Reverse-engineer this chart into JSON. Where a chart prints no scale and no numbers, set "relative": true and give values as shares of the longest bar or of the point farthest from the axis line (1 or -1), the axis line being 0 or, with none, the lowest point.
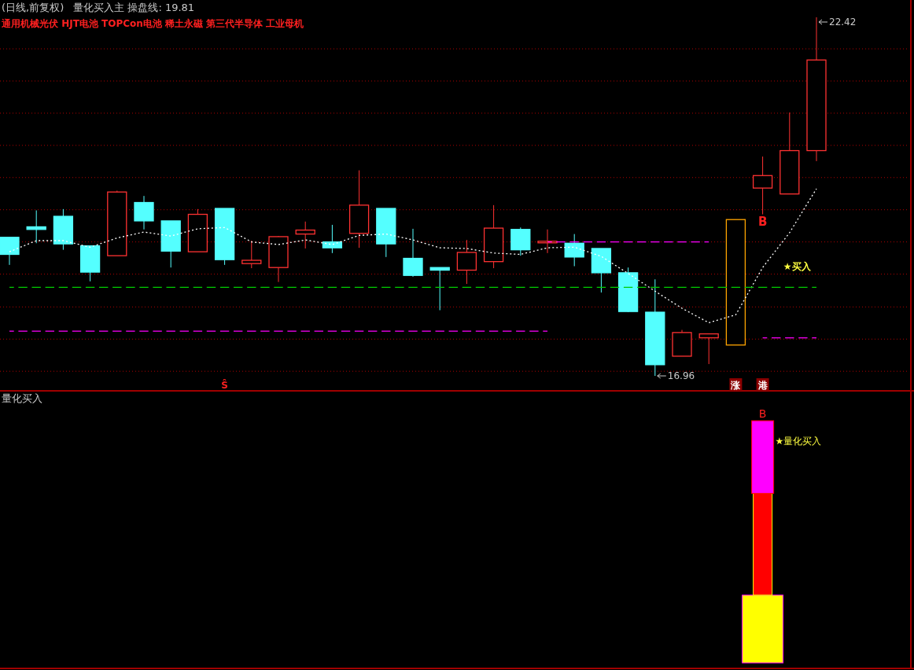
{
  "chart_data": [
    {
      "type": "candlestick",
      "title": "(日线,前复权)",
      "subtitle": "量化买入主 操盘线: 19.81",
      "categories": [
        null,
        null,
        null,
        null,
        null,
        null,
        null,
        null,
        null,
        null,
        null,
        null,
        null,
        null,
        null,
        null,
        null,
        null,
        null,
        null,
        null,
        null,
        null,
        null,
        null,
        null,
        null,
        null,
        null,
        null,
        null
      ],
      "yticks": [
        {
          "value": 21.94,
          "label": null
        },
        {
          "value": 21.45,
          "label": null
        },
        {
          "value": 20.96,
          "label": null
        },
        {
          "value": 20.47,
          "label": null
        },
        {
          "value": 19.98,
          "label": null
        },
        {
          "value": 19.49,
          "label": null
        },
        {
          "value": 19.0,
          "label": null
        },
        {
          "value": 18.51,
          "label": null
        },
        {
          "value": 18.01,
          "label": null
        },
        {
          "value": 17.52,
          "label": null
        },
        {
          "value": 17.03,
          "label": null
        }
      ],
      "ohlc": [
        [
          19.07,
          19.07,
          18.65,
          18.81
        ],
        [
          19.23,
          19.48,
          18.98,
          19.19
        ],
        [
          19.39,
          19.5,
          18.88,
          18.97
        ],
        [
          18.94,
          18.94,
          18.4,
          18.54
        ],
        [
          18.79,
          19.78,
          18.79,
          19.76
        ],
        [
          19.6,
          19.7,
          19.19,
          19.32
        ],
        [
          19.32,
          19.32,
          18.61,
          18.86
        ],
        [
          18.85,
          19.5,
          18.85,
          19.42
        ],
        [
          19.51,
          19.51,
          18.65,
          18.73
        ],
        [
          18.67,
          19.02,
          18.6,
          18.72
        ],
        [
          18.61,
          19.09,
          18.39,
          19.08
        ],
        [
          19.12,
          19.31,
          18.9,
          19.18
        ],
        [
          19.0,
          19.26,
          18.83,
          18.91
        ],
        [
          19.13,
          20.09,
          18.91,
          19.56
        ],
        [
          19.51,
          19.51,
          18.77,
          18.97
        ],
        [
          18.75,
          19.2,
          18.47,
          18.49
        ],
        [
          18.61,
          18.61,
          17.96,
          18.57
        ],
        [
          18.57,
          19.03,
          18.36,
          18.84
        ],
        [
          18.7,
          19.56,
          18.6,
          19.21
        ],
        [
          19.19,
          19.22,
          18.79,
          18.88
        ],
        [
          18.99,
          19.19,
          18.83,
          19.01
        ],
        [
          18.98,
          19.12,
          18.63,
          18.77
        ],
        [
          18.9,
          18.9,
          18.23,
          18.53
        ],
        [
          18.53,
          18.61,
          17.93,
          17.94
        ],
        [
          17.93,
          18.43,
          16.96,
          17.13
        ],
        [
          17.26,
          17.66,
          17.26,
          17.62
        ],
        [
          17.54,
          17.6,
          17.14,
          17.6
        ],
        [
          17.43,
          19.34,
          17.43,
          19.34
        ],
        [
          19.82,
          20.3,
          19.42,
          20.01
        ],
        [
          19.73,
          20.97,
          19.73,
          20.39
        ],
        [
          20.39,
          22.42,
          20.23,
          21.77
        ]
      ],
      "colors": [
        "#54ffff",
        "#54ffff",
        "#54ffff",
        "#54ffff",
        "#ff3232",
        "#54ffff",
        "#54ffff",
        "#ff3232",
        "#54ffff",
        "#ff3232",
        "#ff3232",
        "#ff3232",
        "#54ffff",
        "#ff3232",
        "#54ffff",
        "#54ffff",
        "#54ffff",
        "#ff3232",
        "#ff3232",
        "#54ffff",
        "#ff3232",
        "#54ffff",
        "#54ffff",
        "#54ffff",
        "#54ffff",
        "#ff3232",
        "#ff3232",
        "#ffa500",
        "#ff3232",
        "#ff3232",
        "#ff3232"
      ],
      "series": [
        {
          "type": "line",
          "color": "#ffffff",
          "line_style": "dotted",
          "values": [
            18.85,
            19.02,
            19.02,
            18.92,
            19.06,
            19.15,
            19.09,
            19.2,
            19.22,
            19.0,
            18.96,
            19.03,
            18.96,
            19.1,
            19.12,
            19.03,
            18.91,
            18.9,
            18.83,
            18.81,
            18.91,
            18.92,
            18.78,
            18.52,
            18.25,
            17.99,
            17.77,
            17.89,
            18.61,
            19.14,
            19.81
          ]
        },
        {
          "type": "line",
          "color": "#00cc00",
          "line_style": "dashed",
          "values": [
            18.31,
            18.31,
            18.31,
            18.31,
            18.31,
            18.31,
            18.31,
            18.31,
            18.31,
            18.31,
            18.31,
            18.31,
            18.31,
            18.31,
            18.31,
            18.31,
            18.31,
            18.31,
            18.31,
            18.31,
            18.31,
            18.31,
            18.31,
            18.31,
            18.31,
            18.31,
            18.31,
            18.31,
            18.31,
            18.31,
            18.31
          ]
        },
        {
          "type": "line",
          "color": "#ff00ff",
          "line_style": "dashed",
          "values": [
            17.64,
            17.64,
            17.64,
            17.64,
            17.64,
            17.64,
            17.64,
            17.64,
            17.64,
            17.64,
            17.64,
            17.64,
            17.64,
            17.64,
            17.64,
            17.64,
            17.64,
            17.64,
            17.64,
            17.64,
            17.64,
            null,
            null,
            null,
            null,
            null,
            null,
            null,
            null,
            null,
            null
          ]
        },
        {
          "type": "line",
          "color": "#ff00ff",
          "line_style": "dashed",
          "values": [
            null,
            null,
            null,
            null,
            null,
            null,
            null,
            null,
            null,
            null,
            null,
            null,
            null,
            null,
            null,
            null,
            null,
            null,
            null,
            null,
            19.0,
            19.0,
            19.0,
            19.0,
            19.0,
            19.0,
            19.0,
            null,
            null,
            null,
            null
          ]
        },
        {
          "type": "line",
          "color": "#ff00ff",
          "line_style": "dashed",
          "values": [
            null,
            null,
            null,
            null,
            null,
            null,
            null,
            null,
            null,
            null,
            null,
            null,
            null,
            null,
            null,
            null,
            null,
            null,
            null,
            null,
            null,
            null,
            null,
            null,
            null,
            null,
            null,
            null,
            17.54,
            17.54,
            17.54
          ]
        }
      ],
      "annotations": [
        "通用机械光伏 HJT电池 TOPCon电池 稀土永磁 第三代半导体 工业母机",
        "B",
        "★买入",
        "Ŝ",
        "涨",
        "港",
        "22.42",
        "16.96"
      ],
      "grid": "y"
    },
    {
      "type": "bar",
      "title": "量化买入",
      "stacked": true,
      "relative": true,
      "categories": [
        null,
        null,
        null,
        null,
        null,
        null,
        null,
        null,
        null,
        null,
        null,
        null,
        null,
        null,
        null,
        null,
        null,
        null,
        null,
        null,
        null,
        null,
        null,
        null,
        null,
        null,
        null,
        null,
        null,
        null,
        null
      ],
      "series": [
        {
          "color": "#ffff00",
          "values": [
            null,
            null,
            null,
            null,
            null,
            null,
            null,
            null,
            null,
            null,
            null,
            null,
            null,
            null,
            null,
            null,
            null,
            null,
            null,
            null,
            null,
            null,
            null,
            null,
            null,
            null,
            null,
            null,
            0.28,
            null,
            null
          ]
        },
        {
          "color": "#ff0000",
          "values": [
            null,
            null,
            null,
            null,
            null,
            null,
            null,
            null,
            null,
            null,
            null,
            null,
            null,
            null,
            null,
            null,
            null,
            null,
            null,
            null,
            null,
            null,
            null,
            null,
            null,
            null,
            null,
            null,
            0.42,
            null,
            null
          ]
        },
        {
          "color": "#ff00ff",
          "values": [
            null,
            null,
            null,
            null,
            null,
            null,
            null,
            null,
            null,
            null,
            null,
            null,
            null,
            null,
            null,
            null,
            null,
            null,
            null,
            null,
            null,
            null,
            null,
            null,
            null,
            null,
            null,
            null,
            0.3,
            null,
            null
          ]
        }
      ],
      "annotations": [
        "B",
        "★量化买入"
      ]
    }
  ]
}
